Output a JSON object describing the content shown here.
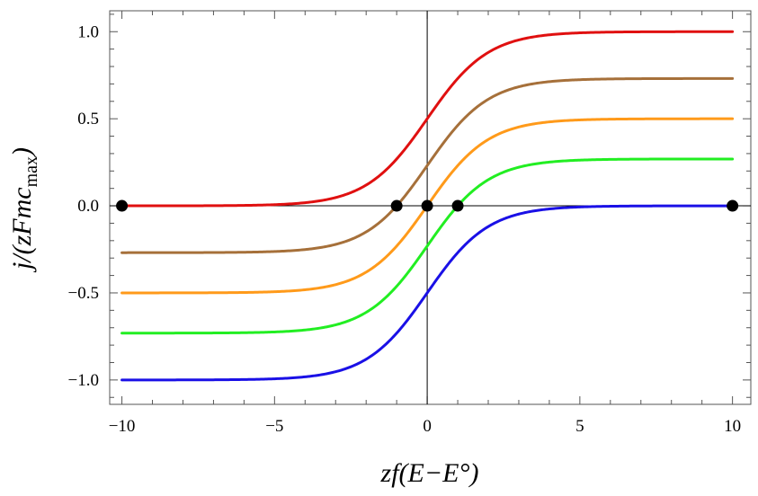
{
  "chart_data": {
    "type": "line",
    "title": "",
    "xlabel": "zf(E−E°)",
    "ylabel": "j/(zFmc",
    "ylabel_subscript": "max",
    "ylabel_suffix": ")",
    "xlim": [
      -10.4,
      10.6
    ],
    "ylim": [
      -1.14,
      1.12
    ],
    "x_ticks": [
      {
        "value": -10,
        "label": "−10"
      },
      {
        "value": -5,
        "label": "−5"
      },
      {
        "value": 0,
        "label": "0"
      },
      {
        "value": 5,
        "label": "5"
      },
      {
        "value": 10,
        "label": "10"
      }
    ],
    "y_ticks": [
      {
        "value": 1.0,
        "label": "1.0"
      },
      {
        "value": 0.5,
        "label": "0.5"
      },
      {
        "value": 0.0,
        "label": "0.0"
      },
      {
        "value": -0.5,
        "label": "−0.5"
      },
      {
        "value": -1.0,
        "label": "−1.0"
      }
    ],
    "grid": false,
    "series": [
      {
        "color": "#e01010",
        "low": 0.0,
        "high": 1.0,
        "midpoint": 0
      },
      {
        "color": "#a6703a",
        "low": -0.269,
        "high": 0.731,
        "midpoint": 0
      },
      {
        "color": "#ff9a1a",
        "low": -0.5,
        "high": 0.5,
        "midpoint": 0
      },
      {
        "color": "#22ee22",
        "low": -0.731,
        "high": 0.269,
        "midpoint": 0
      },
      {
        "color": "#1a10e6",
        "low": -1.0,
        "high": 0.0,
        "midpoint": 0
      }
    ],
    "points": [
      {
        "x": -10,
        "y": 0
      },
      {
        "x": -1,
        "y": 0
      },
      {
        "x": 0,
        "y": 0
      },
      {
        "x": 1,
        "y": 0
      },
      {
        "x": 10,
        "y": 0
      }
    ]
  }
}
